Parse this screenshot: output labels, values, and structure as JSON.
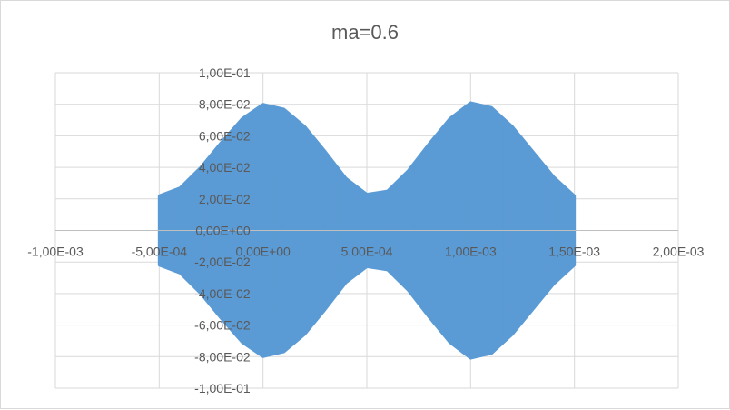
{
  "chart_data": {
    "type": "area",
    "title": "ma=0.6",
    "xlabel": "",
    "ylabel": "",
    "xlim": [
      -0.001,
      0.002
    ],
    "ylim": [
      -0.1,
      0.1
    ],
    "grid": true,
    "x_ticks": [
      -0.001,
      -0.0005,
      0,
      0.0005,
      0.001,
      0.0015,
      0.002
    ],
    "x_tick_labels": [
      "-1,00E-03",
      "-5,00E-04",
      "0,00E+00",
      "5,00E-04",
      "1,00E-03",
      "1,50E-03",
      "2,00E-03"
    ],
    "y_ticks": [
      0.1,
      0.08,
      0.06,
      0.04,
      0.02,
      0,
      -0.02,
      -0.04,
      -0.06,
      -0.08,
      -0.1
    ],
    "y_tick_labels": [
      "1,00E-01",
      "8,00E-02",
      "6,00E-02",
      "4,00E-02",
      "2,00E-02",
      "0,00E+00",
      "-2,00E-02",
      "-4,00E-02",
      "-6,00E-02",
      "-8,00E-02",
      "-1,00E-01"
    ],
    "series_color": "#5b9bd5",
    "grid_color": "#d9d9d9",
    "series": [
      {
        "envelope_x": [
          -0.0005,
          -0.0004,
          -0.0003,
          -0.0002,
          -0.0001,
          0,
          0.0001,
          0.0002,
          0.0003,
          0.0004,
          0.0005,
          0.0006,
          0.0007,
          0.0008,
          0.0009,
          0.001,
          0.0011,
          0.0012,
          0.0013,
          0.0014,
          0.0015
        ],
        "envelope_upper": [
          0.022,
          0.027,
          0.04,
          0.056,
          0.071,
          0.08,
          0.077,
          0.066,
          0.05,
          0.033,
          0.023,
          0.025,
          0.038,
          0.055,
          0.071,
          0.081,
          0.078,
          0.066,
          0.05,
          0.034,
          0.022
        ],
        "envelope_lower": [
          -0.022,
          -0.027,
          -0.04,
          -0.056,
          -0.071,
          -0.08,
          -0.077,
          -0.066,
          -0.05,
          -0.033,
          -0.023,
          -0.025,
          -0.038,
          -0.055,
          -0.071,
          -0.081,
          -0.078,
          -0.066,
          -0.05,
          -0.034,
          -0.022
        ]
      }
    ]
  }
}
